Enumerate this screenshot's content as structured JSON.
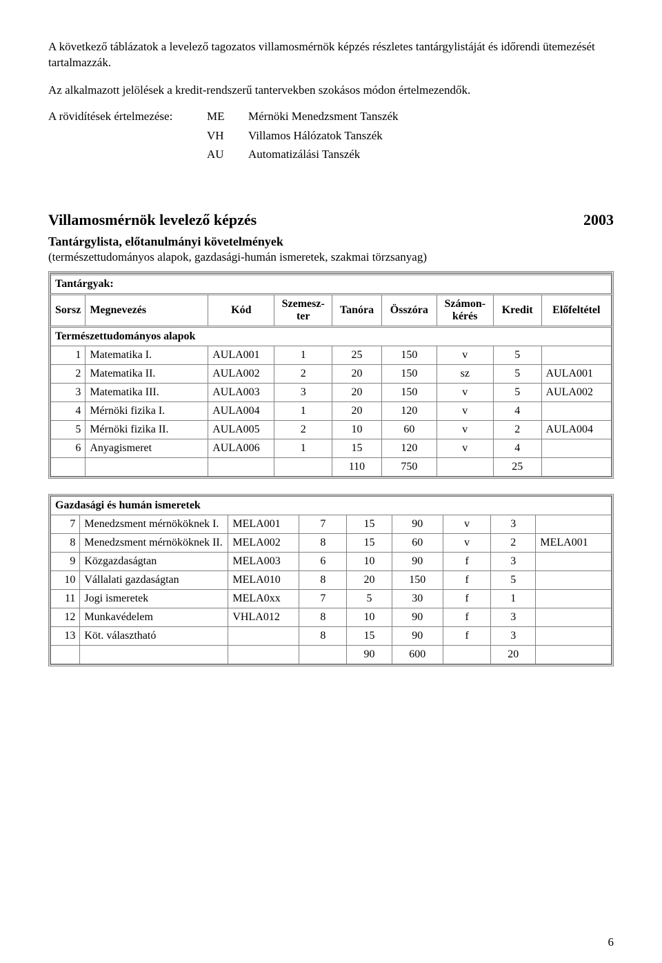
{
  "intro": {
    "p1": "A következő táblázatok a levelező tagozatos villamosmérnök képzés részletes tantárgylistáját és időrendi ütemezését tartalmazzák.",
    "p2": "Az alkalmazott jelölések a kredit-rendszerű tantervekben szokásos módon értelmezendők."
  },
  "abbrev_label": "A rövidítések értelmezése:",
  "abbrevs": [
    {
      "code": "ME",
      "desc": "Mérnöki Menedzsment Tanszék"
    },
    {
      "code": "VH",
      "desc": "Villamos Hálózatok Tanszék"
    },
    {
      "code": "AU",
      "desc": "Automatizálási Tanszék"
    }
  ],
  "title": "Villamosmérnök levelező képzés",
  "year": "2003",
  "subtitle": "Tantárgylista, előtanulmányi követelmények",
  "subtitle_paren": "(természettudományos alapok, gazdasági-humán ismeretek, szakmai törzsanyag)",
  "section1_top": "Tantárgyak:",
  "columns": {
    "sorsz": "Sorsz",
    "megnevezes": "Megnevezés",
    "kod": "Kód",
    "szemeszter": "Szemesz-\nter",
    "tanora": "Tanóra",
    "osszora": "Összóra",
    "szamonkeres": "Számon-\nkérés",
    "kredit": "Kredit",
    "elofeltetel": "Előfeltétel"
  },
  "section1_title": "Természettudományos alapok",
  "section1_rows": [
    {
      "n": "1",
      "name": "Matematika I.",
      "kod": "AULA001",
      "sem": "1",
      "tan": "25",
      "ossz": "150",
      "szk": "v",
      "kred": "5",
      "elo": ""
    },
    {
      "n": "2",
      "name": "Matematika II.",
      "kod": "AULA002",
      "sem": "2",
      "tan": "20",
      "ossz": "150",
      "szk": "sz",
      "kred": "5",
      "elo": "AULA001"
    },
    {
      "n": "3",
      "name": "Matematika III.",
      "kod": "AULA003",
      "sem": "3",
      "tan": "20",
      "ossz": "150",
      "szk": "v",
      "kred": "5",
      "elo": "AULA002"
    },
    {
      "n": "4",
      "name": "Mérnöki fizika I.",
      "kod": "AULA004",
      "sem": "1",
      "tan": "20",
      "ossz": "120",
      "szk": "v",
      "kred": "4",
      "elo": ""
    },
    {
      "n": "5",
      "name": "Mérnöki fizika II.",
      "kod": "AULA005",
      "sem": "2",
      "tan": "10",
      "ossz": "60",
      "szk": "v",
      "kred": "2",
      "elo": "AULA004"
    },
    {
      "n": "6",
      "name": "Anyagismeret",
      "kod": "AULA006",
      "sem": "1",
      "tan": "15",
      "ossz": "120",
      "szk": "v",
      "kred": "4",
      "elo": ""
    }
  ],
  "section1_sum": {
    "tan": "110",
    "ossz": "750",
    "kred": "25"
  },
  "section2_title": "Gazdasági és humán ismeretek",
  "section2_rows": [
    {
      "n": "7",
      "name": "Menedzsment mérnököknek I.",
      "kod": "MELA001",
      "sem": "7",
      "tan": "15",
      "ossz": "90",
      "szk": "v",
      "kred": "3",
      "elo": ""
    },
    {
      "n": "8",
      "name": "Menedzsment mérnököknek II.",
      "kod": "MELA002",
      "sem": "8",
      "tan": "15",
      "ossz": "60",
      "szk": "v",
      "kred": "2",
      "elo": "MELA001"
    },
    {
      "n": "9",
      "name": "Közgazdaságtan",
      "kod": "MELA003",
      "sem": "6",
      "tan": "10",
      "ossz": "90",
      "szk": "f",
      "kred": "3",
      "elo": ""
    },
    {
      "n": "10",
      "name": "Vállalati gazdaságtan",
      "kod": "MELA010",
      "sem": "8",
      "tan": "20",
      "ossz": "150",
      "szk": "f",
      "kred": "5",
      "elo": ""
    },
    {
      "n": "11",
      "name": "Jogi ismeretek",
      "kod": "MELA0xx",
      "sem": "7",
      "tan": "5",
      "ossz": "30",
      "szk": "f",
      "kred": "1",
      "elo": ""
    },
    {
      "n": "12",
      "name": "Munkavédelem",
      "kod": "VHLA012",
      "sem": "8",
      "tan": "10",
      "ossz": "90",
      "szk": "f",
      "kred": "3",
      "elo": ""
    },
    {
      "n": "13",
      "name": "Köt. választható",
      "kod": "",
      "sem": "8",
      "tan": "15",
      "ossz": "90",
      "szk": "f",
      "kred": "3",
      "elo": ""
    }
  ],
  "section2_sum": {
    "tan": "90",
    "ossz": "600",
    "kred": "20"
  },
  "page_number": "6",
  "colors": {
    "text": "#000000",
    "bg": "#ffffff",
    "border": "#808080"
  },
  "fonts": {
    "body_family": "Times New Roman",
    "body_size_pt": 12,
    "title_size_pt": 16
  }
}
